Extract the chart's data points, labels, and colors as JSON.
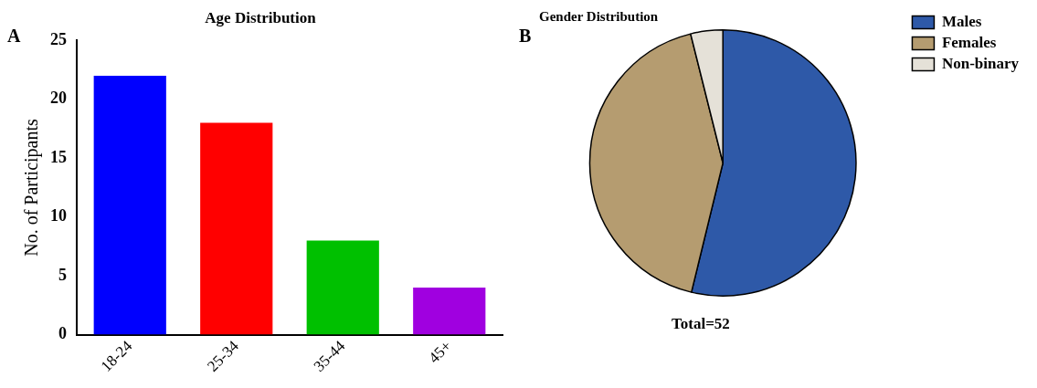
{
  "chart_data": [
    {
      "type": "bar",
      "title": "Age Distribution",
      "ylabel": "No. of Participants",
      "categories": [
        "18-24",
        "25-34",
        "35-44",
        "45+"
      ],
      "values": [
        22,
        18,
        8,
        4
      ],
      "colors": [
        "#0000ff",
        "#ff0000",
        "#00c000",
        "#a000e0"
      ],
      "ylim": [
        0,
        25
      ],
      "yticks": [
        0,
        5,
        10,
        15,
        20,
        25
      ],
      "grid": false,
      "legend": false,
      "annotations": [
        "A"
      ]
    },
    {
      "type": "pie",
      "title": "Gender Distribution",
      "categories": [
        "Males",
        "Females",
        "Non-binary"
      ],
      "values": [
        53.8,
        42.3,
        3.9
      ],
      "colors": [
        "#2e59a8",
        "#b59c70",
        "#e5e1d8"
      ],
      "legend": "top right",
      "annotations": [
        "B",
        "Total=52"
      ]
    }
  ]
}
